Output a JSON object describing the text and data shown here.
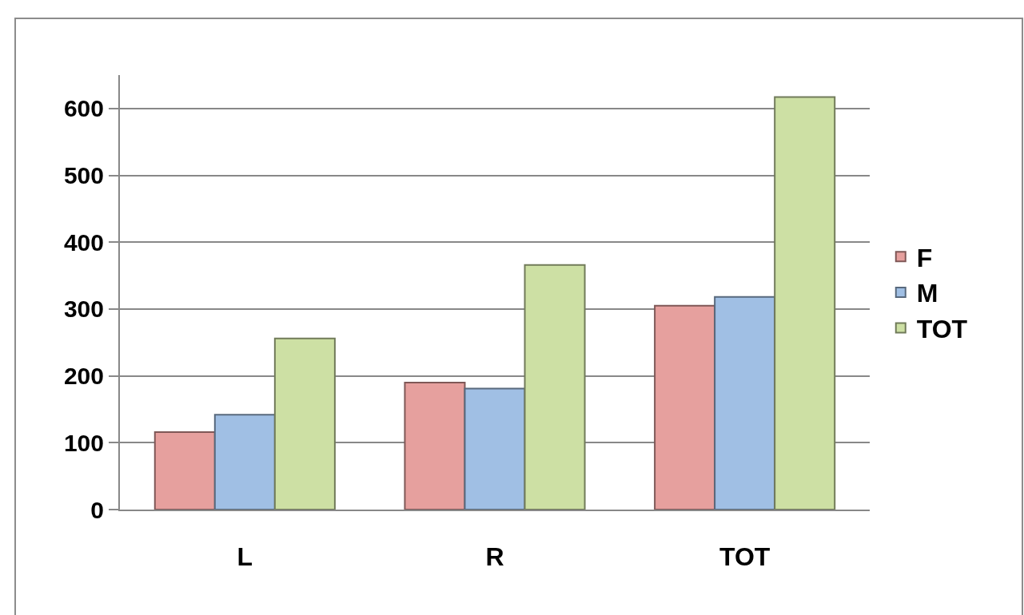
{
  "chart_data": {
    "type": "bar",
    "categories": [
      "L",
      "R",
      "TOT"
    ],
    "series": [
      {
        "name": "F",
        "color": "#e6a09e",
        "values": [
          116,
          190,
          305
        ]
      },
      {
        "name": "M",
        "color": "#a0bfe4",
        "values": [
          142,
          181,
          318
        ]
      },
      {
        "name": "TOT",
        "color": "#cde0a4",
        "values": [
          256,
          366,
          617
        ]
      }
    ],
    "ylim": [
      0,
      650
    ],
    "yticks": [
      0,
      100,
      200,
      300,
      400,
      500,
      600
    ],
    "grid": "y",
    "legend": "right"
  }
}
